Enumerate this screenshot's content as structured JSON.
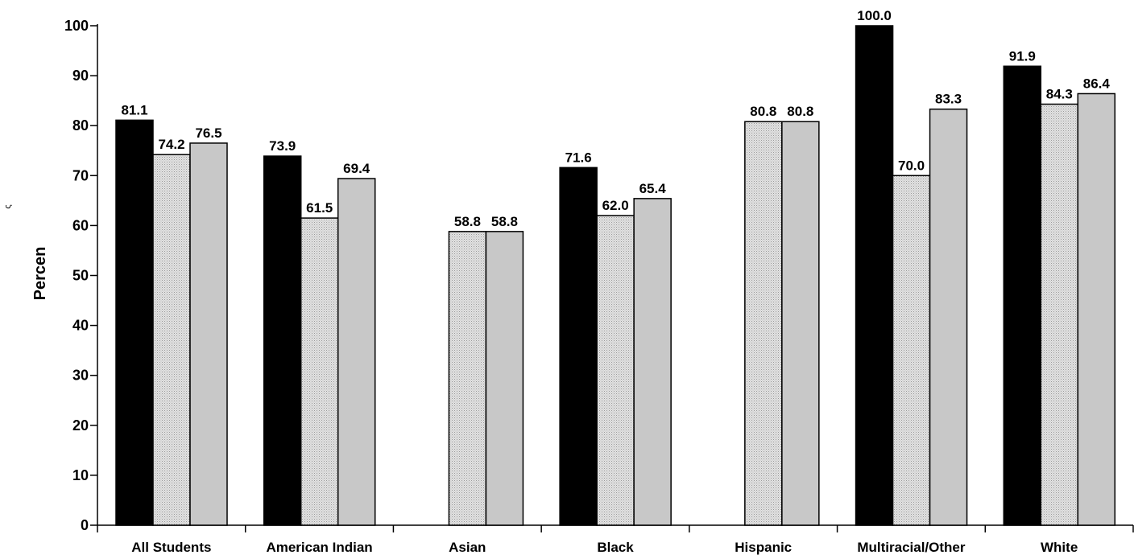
{
  "chart_data": {
    "type": "bar",
    "title": "",
    "xlabel": "",
    "ylabel": "Percen",
    "ylabel_mark": "ς",
    "ylim": [
      0,
      100
    ],
    "yticks": [
      0,
      10,
      20,
      30,
      40,
      50,
      60,
      70,
      80,
      90,
      100
    ],
    "grid": false,
    "legend": "none",
    "categories": [
      "All Students",
      "American Indian",
      "Asian",
      "Black",
      "Hispanic",
      "Multiracial/Other",
      "White"
    ],
    "series": [
      {
        "values": [
          81.1,
          73.9,
          null,
          71.6,
          null,
          100.0,
          91.9
        ],
        "color": "#000000"
      },
      {
        "values": [
          74.2,
          61.5,
          58.8,
          62.0,
          80.8,
          70.0,
          84.3
        ],
        "color": "#d6d6d6",
        "pattern": "dots"
      },
      {
        "values": [
          76.5,
          69.4,
          58.8,
          65.4,
          80.8,
          83.3,
          86.4
        ],
        "color": "#c8c8c8"
      }
    ],
    "value_labels": [
      [
        "81.1",
        "73.9",
        "",
        "71.6",
        "",
        "100.0",
        "91.9"
      ],
      [
        "74.2",
        "61.5",
        "58.8",
        "62.0",
        "80.8",
        "70.0",
        "84.3"
      ],
      [
        "76.5",
        "69.4",
        "58.8",
        "65.4",
        "80.8",
        "83.3",
        "86.4"
      ]
    ]
  }
}
